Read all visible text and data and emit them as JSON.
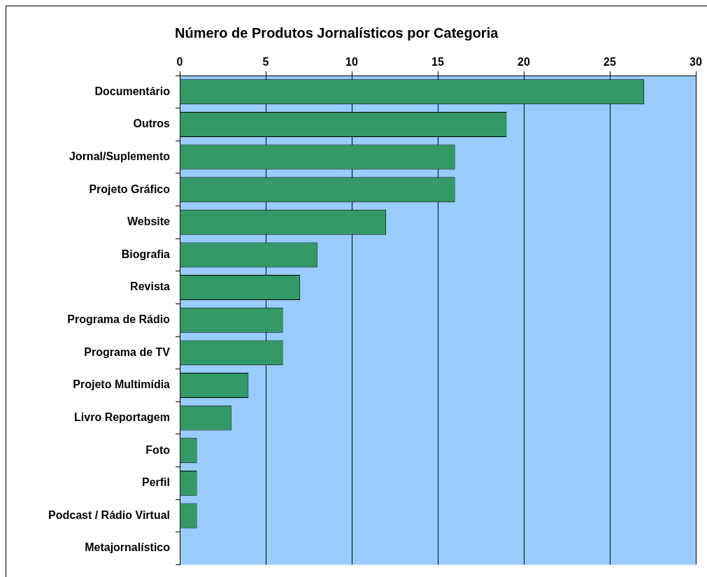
{
  "chart_data": {
    "type": "bar",
    "orientation": "horizontal",
    "title": "Número de Produtos Jornalísticos por Categoria",
    "categories": [
      "Documentário",
      "Outros",
      "Jornal/Suplemento",
      "Projeto Gráfico",
      "Website",
      "Biografia",
      "Revista",
      "Programa de Rádio",
      "Programa de TV",
      "Projeto Multimídia",
      "Livro Reportagem",
      "Foto",
      "Perfil",
      "Podcast / Rádio Virtual",
      "Metajornalístico"
    ],
    "values": [
      27,
      19,
      16,
      16,
      12,
      8,
      7,
      6,
      6,
      4,
      3,
      1,
      1,
      1,
      0
    ],
    "color": "#339966",
    "xlim": [
      0,
      30
    ],
    "xticks": [
      0,
      5,
      10,
      15,
      20,
      25,
      30
    ],
    "grid": "x",
    "legend": false
  }
}
